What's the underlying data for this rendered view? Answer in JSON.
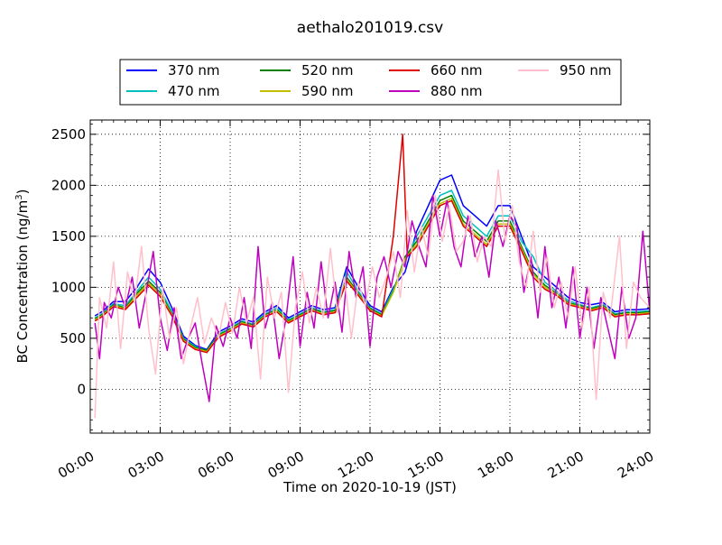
{
  "chart_data": {
    "type": "line",
    "title": "aethalo201019.csv",
    "xlabel": "Time on 2020-10-19 (JST)",
    "ylabel": "BC Concentration (ng/m",
    "ylabel_sup": "3",
    "ylabel_tail": ")",
    "xlim": [
      0,
      24
    ],
    "ylim": [
      -430,
      2640
    ],
    "x_unit": "hours",
    "x_ticks": [
      0,
      3,
      6,
      9,
      12,
      15,
      18,
      21,
      24
    ],
    "x_tick_labels": [
      "00:00",
      "03:00",
      "06:00",
      "09:00",
      "12:00",
      "15:00",
      "18:00",
      "21:00",
      "24:00"
    ],
    "y_ticks": [
      0,
      500,
      1000,
      1500,
      2000,
      2500
    ],
    "y_tick_labels": [
      "0",
      "500",
      "1000",
      "1500",
      "2000",
      "2500"
    ],
    "grid": true,
    "legend_position": "top",
    "series": [
      {
        "name": "370 nm",
        "color": "#0000ff",
        "x": [
          0.2,
          0.5,
          1.0,
          1.5,
          2.0,
          2.5,
          3.0,
          3.5,
          4.0,
          4.5,
          5.0,
          5.5,
          6.0,
          6.5,
          7.0,
          7.5,
          8.0,
          8.5,
          9.0,
          9.5,
          10.0,
          10.5,
          11.0,
          11.5,
          12.0,
          12.5,
          13.0,
          13.5,
          14.0,
          14.5,
          15.0,
          15.5,
          16.0,
          16.5,
          17.0,
          17.5,
          18.0,
          18.5,
          19.0,
          19.5,
          20.0,
          20.5,
          21.0,
          21.5,
          22.0,
          22.5,
          23.0,
          23.5,
          24.0
        ],
        "y": [
          720,
          760,
          860,
          860,
          1000,
          1180,
          1050,
          800,
          520,
          430,
          390,
          560,
          620,
          690,
          660,
          760,
          820,
          700,
          760,
          820,
          780,
          800,
          1200,
          1000,
          820,
          760,
          1000,
          1150,
          1550,
          1800,
          2050,
          2100,
          1800,
          1700,
          1600,
          1800,
          1800,
          1500,
          1200,
          1100,
          1000,
          900,
          850,
          830,
          850,
          760,
          780,
          780,
          790
        ]
      },
      {
        "name": "470 nm",
        "color": "#00bfbf",
        "x": [
          0.2,
          0.5,
          1.0,
          1.5,
          2.0,
          2.5,
          3.0,
          3.5,
          4.0,
          4.5,
          5.0,
          5.5,
          6.0,
          6.5,
          7.0,
          7.5,
          8.0,
          8.5,
          9.0,
          9.5,
          10.0,
          10.5,
          11.0,
          11.5,
          12.0,
          12.5,
          13.0,
          13.5,
          14.0,
          14.5,
          15.0,
          15.5,
          16.0,
          16.5,
          17.0,
          17.5,
          18.0,
          18.5,
          19.0,
          19.5,
          20.0,
          20.5,
          21.0,
          21.5,
          22.0,
          22.5,
          23.0,
          23.5,
          24.0
        ],
        "y": [
          700,
          740,
          840,
          820,
          960,
          1100,
          980,
          760,
          500,
          420,
          380,
          540,
          600,
          670,
          640,
          740,
          800,
          680,
          740,
          800,
          760,
          780,
          1150,
          960,
          800,
          740,
          980,
          1250,
          1500,
          1700,
          1900,
          1950,
          1700,
          1600,
          1500,
          1700,
          1700,
          1450,
          1300,
          1050,
          960,
          870,
          830,
          800,
          830,
          740,
          760,
          760,
          770
        ]
      },
      {
        "name": "520 nm",
        "color": "#008000",
        "x": [
          0.2,
          0.5,
          1.0,
          1.5,
          2.0,
          2.5,
          3.0,
          3.5,
          4.0,
          4.5,
          5.0,
          5.5,
          6.0,
          6.5,
          7.0,
          7.5,
          8.0,
          8.5,
          9.0,
          9.5,
          10.0,
          10.5,
          11.0,
          11.5,
          12.0,
          12.5,
          13.0,
          13.5,
          14.0,
          14.5,
          15.0,
          15.5,
          16.0,
          16.5,
          17.0,
          17.5,
          18.0,
          18.5,
          19.0,
          19.5,
          20.0,
          20.5,
          21.0,
          21.5,
          22.0,
          22.5,
          23.0,
          23.5,
          24.0
        ],
        "y": [
          690,
          730,
          830,
          800,
          940,
          1060,
          950,
          740,
          490,
          410,
          380,
          530,
          590,
          660,
          630,
          730,
          780,
          670,
          730,
          790,
          750,
          770,
          1100,
          940,
          790,
          730,
          960,
          1300,
          1450,
          1650,
          1850,
          1900,
          1650,
          1550,
          1450,
          1650,
          1650,
          1400,
          1150,
          1020,
          940,
          850,
          820,
          790,
          820,
          730,
          750,
          750,
          760
        ]
      },
      {
        "name": "590 nm",
        "color": "#bfbf00",
        "x": [
          0.2,
          0.5,
          1.0,
          1.5,
          2.0,
          2.5,
          3.0,
          3.5,
          4.0,
          4.5,
          5.0,
          5.5,
          6.0,
          6.5,
          7.0,
          7.5,
          8.0,
          8.5,
          9.0,
          9.5,
          10.0,
          10.5,
          11.0,
          11.5,
          12.0,
          12.5,
          13.0,
          13.5,
          14.0,
          14.5,
          15.0,
          15.5,
          16.0,
          16.5,
          17.0,
          17.5,
          18.0,
          18.5,
          19.0,
          19.5,
          20.0,
          20.5,
          21.0,
          21.5,
          22.0,
          22.5,
          23.0,
          23.5,
          24.0
        ],
        "y": [
          680,
          720,
          820,
          790,
          920,
          1040,
          930,
          730,
          480,
          400,
          370,
          520,
          580,
          650,
          620,
          720,
          770,
          660,
          720,
          780,
          740,
          760,
          1080,
          930,
          780,
          720,
          950,
          1280,
          1420,
          1620,
          1820,
          1870,
          1620,
          1520,
          1420,
          1620,
          1620,
          1380,
          1130,
          1000,
          930,
          840,
          810,
          780,
          810,
          720,
          740,
          740,
          750
        ]
      },
      {
        "name": "660 nm",
        "color": "#e00000",
        "x": [
          0.2,
          0.5,
          1.0,
          1.5,
          2.0,
          2.5,
          3.0,
          3.5,
          4.0,
          4.5,
          5.0,
          5.5,
          6.0,
          6.5,
          7.0,
          7.5,
          8.0,
          8.5,
          9.0,
          9.5,
          10.0,
          10.5,
          11.0,
          11.5,
          12.0,
          12.5,
          13.0,
          13.4,
          13.6,
          14.0,
          14.5,
          15.0,
          15.5,
          16.0,
          16.5,
          17.0,
          17.5,
          18.0,
          18.5,
          19.0,
          19.5,
          20.0,
          20.5,
          21.0,
          21.5,
          22.0,
          22.5,
          23.0,
          23.5,
          24.0
        ],
        "y": [
          670,
          710,
          810,
          780,
          900,
          1020,
          910,
          720,
          470,
          390,
          360,
          510,
          570,
          640,
          610,
          710,
          760,
          650,
          710,
          770,
          730,
          750,
          1060,
          920,
          770,
          710,
          1500,
          2500,
          1300,
          1400,
          1600,
          1800,
          1850,
          1600,
          1500,
          1400,
          1600,
          1600,
          1360,
          1100,
          980,
          920,
          830,
          800,
          770,
          800,
          710,
          730,
          730,
          740
        ]
      },
      {
        "name": "880 nm",
        "color": "#bf00bf",
        "x": [
          0.2,
          0.4,
          0.6,
          0.9,
          1.2,
          1.5,
          1.8,
          2.1,
          2.4,
          2.7,
          3.0,
          3.3,
          3.6,
          3.9,
          4.2,
          4.5,
          4.8,
          5.1,
          5.4,
          5.7,
          6.0,
          6.3,
          6.6,
          6.9,
          7.2,
          7.5,
          7.8,
          8.1,
          8.4,
          8.7,
          9.0,
          9.3,
          9.6,
          9.9,
          10.2,
          10.5,
          10.8,
          11.1,
          11.4,
          11.7,
          12.0,
          12.3,
          12.6,
          12.9,
          13.2,
          13.5,
          13.8,
          14.1,
          14.4,
          14.7,
          15.0,
          15.3,
          15.6,
          15.9,
          16.2,
          16.5,
          16.8,
          17.1,
          17.4,
          17.7,
          18.0,
          18.3,
          18.6,
          18.9,
          19.2,
          19.5,
          19.8,
          20.1,
          20.4,
          20.7,
          21.0,
          21.3,
          21.6,
          21.9,
          22.2,
          22.5,
          22.8,
          23.1,
          23.4,
          23.7,
          24.0
        ],
        "y": [
          650,
          300,
          850,
          700,
          1000,
          800,
          1100,
          600,
          950,
          1350,
          700,
          380,
          800,
          300,
          500,
          650,
          250,
          -120,
          620,
          420,
          700,
          500,
          900,
          400,
          1400,
          600,
          850,
          300,
          700,
          1300,
          420,
          950,
          600,
          1250,
          700,
          1050,
          560,
          1350,
          900,
          1200,
          420,
          1100,
          1300,
          1000,
          1350,
          1200,
          1650,
          1400,
          1200,
          1900,
          1500,
          1850,
          1400,
          1200,
          1700,
          1300,
          1500,
          1100,
          1650,
          1400,
          1700,
          1600,
          950,
          1300,
          700,
          1400,
          800,
          1100,
          600,
          1200,
          500,
          1000,
          400,
          900,
          600,
          300,
          1000,
          500,
          700,
          1550,
          750
        ]
      },
      {
        "name": "950 nm",
        "color": "#ffc0cb",
        "x": [
          0.2,
          0.4,
          0.7,
          1.0,
          1.3,
          1.6,
          1.9,
          2.2,
          2.5,
          2.8,
          3.1,
          3.4,
          3.7,
          4.0,
          4.3,
          4.6,
          4.9,
          5.2,
          5.5,
          5.8,
          6.1,
          6.4,
          6.7,
          7.0,
          7.3,
          7.6,
          7.9,
          8.2,
          8.5,
          8.8,
          9.1,
          9.4,
          9.7,
          10.0,
          10.3,
          10.6,
          10.9,
          11.2,
          11.5,
          11.8,
          12.1,
          12.4,
          12.7,
          13.0,
          13.3,
          13.6,
          13.9,
          14.2,
          14.5,
          14.8,
          15.1,
          15.4,
          15.7,
          16.0,
          16.3,
          16.6,
          16.9,
          17.2,
          17.5,
          17.8,
          18.1,
          18.4,
          18.7,
          19.0,
          19.3,
          19.6,
          19.9,
          20.2,
          20.5,
          20.8,
          21.1,
          21.4,
          21.7,
          22.0,
          22.3,
          22.7,
          23.0,
          23.3,
          23.6,
          24.0
        ],
        "y": [
          -280,
          900,
          600,
          1250,
          400,
          1150,
          850,
          1400,
          600,
          150,
          1000,
          500,
          800,
          250,
          600,
          900,
          450,
          700,
          500,
          850,
          550,
          1000,
          650,
          900,
          100,
          1100,
          700,
          950,
          -30,
          800,
          1150,
          650,
          1000,
          700,
          1380,
          750,
          1100,
          500,
          1050,
          820,
          1200,
          900,
          1100,
          1350,
          900,
          1750,
          1150,
          1600,
          1300,
          1900,
          1450,
          1800,
          1350,
          1450,
          1700,
          1250,
          1500,
          1400,
          2150,
          1450,
          1800,
          1250,
          1000,
          1550,
          950,
          1300,
          800,
          1050,
          700,
          1200,
          600,
          1000,
          -100,
          950,
          700,
          1500,
          400,
          1050,
          900,
          800
        ]
      }
    ]
  }
}
